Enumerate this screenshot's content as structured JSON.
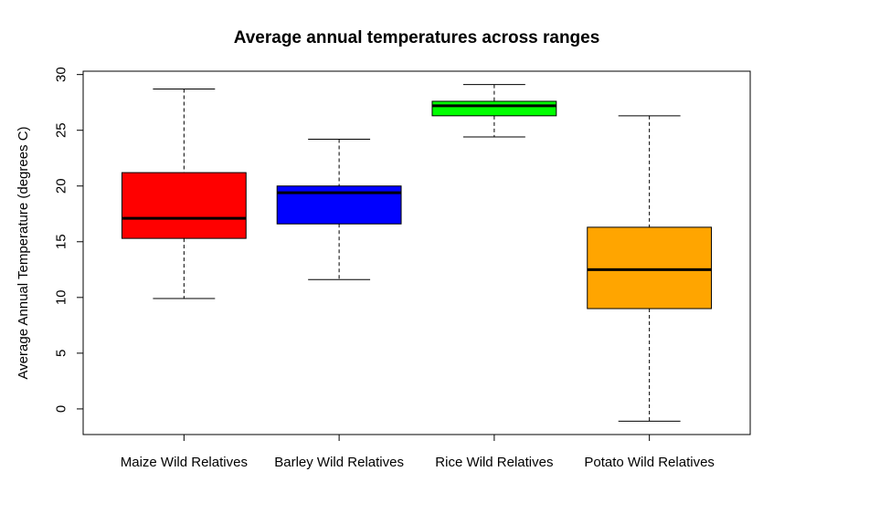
{
  "chart_data": {
    "type": "box",
    "title": "Average annual temperatures across ranges",
    "xlabel": "",
    "ylabel": "Average Annual Temperature (degrees C)",
    "ylim": [
      -2.3,
      30.3
    ],
    "yticks": [
      0,
      5,
      10,
      15,
      20,
      25,
      30
    ],
    "categories": [
      "Maize Wild Relatives",
      "Barley Wild Relatives",
      "Rice Wild Relatives",
      "Potato Wild Relatives"
    ],
    "boxes": [
      {
        "name": "Maize Wild Relatives",
        "color": "#ff0000",
        "min": 9.9,
        "q1": 15.3,
        "median": 17.1,
        "q3": 21.2,
        "max": 28.7
      },
      {
        "name": "Barley Wild Relatives",
        "color": "#0000ff",
        "min": 11.6,
        "q1": 16.6,
        "median": 19.4,
        "q3": 20.0,
        "max": 24.2
      },
      {
        "name": "Rice Wild Relatives",
        "color": "#00ff00",
        "min": 24.4,
        "q1": 26.3,
        "median": 27.2,
        "q3": 27.6,
        "max": 29.1
      },
      {
        "name": "Potato Wild Relatives",
        "color": "#ffa500",
        "min": -1.1,
        "q1": 9.0,
        "median": 12.5,
        "q3": 16.3,
        "max": 26.3
      }
    ],
    "grid": false,
    "legend": "none"
  }
}
